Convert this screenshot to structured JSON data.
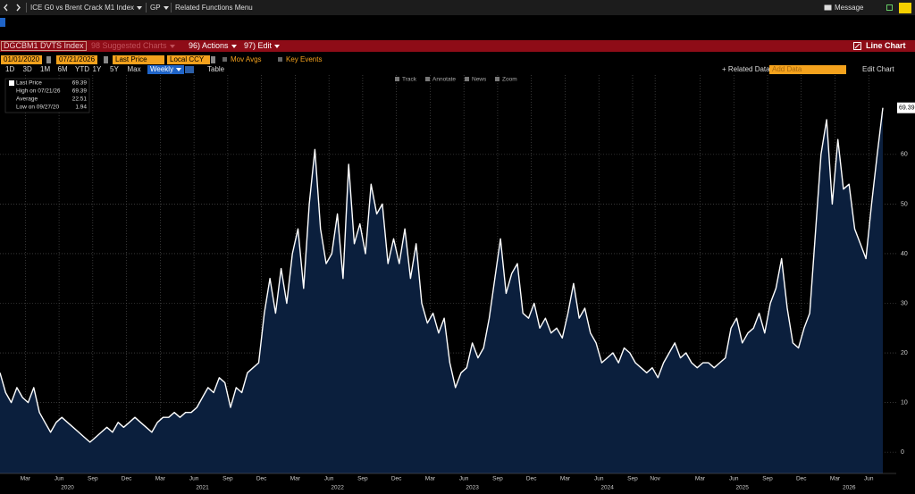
{
  "toolbar": {
    "security": "ICE G0 vs Brent Crack M1 Index",
    "function": "GP",
    "related_menu": "Related Functions Menu",
    "message": "Message"
  },
  "header": {
    "ticker": "DGCBM1 DVTS Index",
    "suggested": "98 Suggested Charts",
    "actions": "96) Actions",
    "edit": "97) Edit",
    "chart_type": "Line Chart"
  },
  "controls": {
    "start_date": "01/01/2020",
    "end_date": "07/21/2026",
    "field": "Last Price",
    "currency": "Local CCY",
    "mov_avgs": "Mov Avgs",
    "key_events": "Key Events",
    "periods": [
      "1D",
      "3D",
      "1M",
      "6M",
      "YTD",
      "1Y",
      "5Y",
      "Max"
    ],
    "frequency": "Weekly",
    "table": "Table",
    "related_data": "Related Data",
    "add_data": "Add Data",
    "edit_chart": "Edit Chart"
  },
  "chart_tools": [
    "Track",
    "Annotate",
    "News",
    "Zoom"
  ],
  "chart_data": {
    "type": "area",
    "legend": [
      {
        "label": "Last Price",
        "value": 69.39
      },
      {
        "label": "High on 07/21/26",
        "value": 69.39
      },
      {
        "label": "Average",
        "value": 22.51
      },
      {
        "label": "Low on 09/27/20",
        "value": 1.94
      }
    ],
    "values": [
      16,
      12,
      10,
      13,
      11,
      10,
      13,
      8,
      6,
      4,
      6,
      7,
      6,
      5,
      4,
      3,
      2,
      3,
      4,
      5,
      4,
      6,
      5,
      6,
      7,
      6,
      5,
      4,
      6,
      7,
      7,
      8,
      7,
      8,
      8,
      9,
      11,
      13,
      12,
      15,
      14,
      9,
      13,
      12,
      16,
      17,
      18,
      28,
      35,
      28,
      37,
      30,
      40,
      45,
      33,
      50,
      61,
      45,
      38,
      40,
      48,
      35,
      58,
      42,
      46,
      40,
      54,
      48,
      50,
      38,
      43,
      38,
      45,
      35,
      42,
      30,
      26,
      28,
      24,
      27,
      18,
      13,
      16,
      17,
      22,
      19,
      21,
      27,
      35,
      43,
      32,
      36,
      38,
      28,
      27,
      30,
      25,
      27,
      24,
      25,
      23,
      28,
      34,
      27,
      29,
      24,
      22,
      18,
      19,
      20,
      18,
      21,
      20,
      18,
      17,
      16,
      17,
      15,
      18,
      20,
      22,
      19,
      20,
      18,
      17,
      18,
      18,
      17,
      18,
      19,
      25,
      27,
      22,
      24,
      25,
      28,
      24,
      30,
      33,
      39,
      29,
      22,
      21,
      25,
      28,
      44,
      60,
      67,
      50,
      63,
      53,
      54,
      45,
      42,
      39,
      50,
      60,
      69.39
    ],
    "color": "#ffffff",
    "fill": "#0b1f3d",
    "xlim": [
      0,
      157
    ],
    "xticks": [
      {
        "value": 4.5,
        "label": "Mar"
      },
      {
        "value": 10.5,
        "label": "Jun"
      },
      {
        "value": 16.5,
        "label": "Sep"
      },
      {
        "value": 22.5,
        "label": "Dec"
      },
      {
        "value": 28.5,
        "label": "Mar"
      },
      {
        "value": 34.5,
        "label": "Jun"
      },
      {
        "value": 40.5,
        "label": "Sep"
      },
      {
        "value": 46.5,
        "label": "Dec"
      },
      {
        "value": 52.5,
        "label": "Mar"
      },
      {
        "value": 58.5,
        "label": "Jun"
      },
      {
        "value": 64.5,
        "label": "Sep"
      },
      {
        "value": 70.5,
        "label": "Dec"
      },
      {
        "value": 76.5,
        "label": "Mar"
      },
      {
        "value": 82.5,
        "label": "Jun"
      },
      {
        "value": 88.5,
        "label": "Sep"
      },
      {
        "value": 94.5,
        "label": "Dec"
      },
      {
        "value": 100.5,
        "label": "Mar"
      },
      {
        "value": 106.5,
        "label": "Jun"
      },
      {
        "value": 112.5,
        "label": "Sep"
      },
      {
        "value": 116.5,
        "label": "Nov"
      },
      {
        "value": 124.5,
        "label": "Mar"
      },
      {
        "value": 130.5,
        "label": "Jun"
      },
      {
        "value": 136.5,
        "label": "Sep"
      },
      {
        "value": 142.5,
        "label": "Dec"
      },
      {
        "value": 148.5,
        "label": "Mar"
      },
      {
        "value": 154.5,
        "label": "Jun"
      }
    ],
    "year_ticks": [
      {
        "value": 12,
        "label": "2020"
      },
      {
        "value": 36,
        "label": "2021"
      },
      {
        "value": 60,
        "label": "2022"
      },
      {
        "value": 84,
        "label": "2023"
      },
      {
        "value": 108,
        "label": "2024"
      },
      {
        "value": 132,
        "label": "2025"
      },
      {
        "value": 151,
        "label": "2026"
      }
    ],
    "ylim": [
      -4.3,
      76
    ],
    "yticks": [
      0,
      10,
      20,
      30,
      40,
      50,
      60
    ],
    "grid": true
  }
}
